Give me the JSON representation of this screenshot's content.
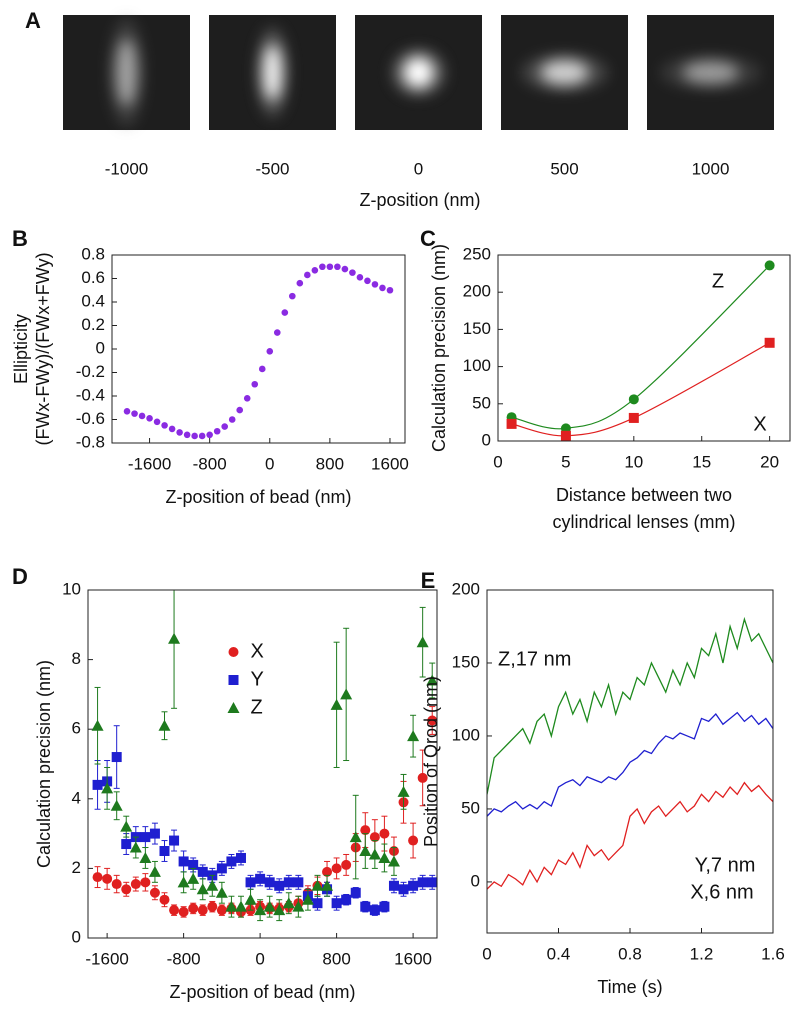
{
  "chart_data": [
    {
      "type": "image-strip",
      "panel": "A",
      "categories": [
        -1000,
        -500,
        0,
        500,
        1000
      ],
      "xlabel": "Z-position (nm)"
    },
    {
      "type": "scatter",
      "panel": "B",
      "color": "#8a2be2",
      "xlabel": "Z-position of bead (nm)",
      "ylabel": [
        "Ellipticity",
        "(FWx-FWy)/(FWx+FWy)"
      ],
      "x": [
        -1900,
        -1800,
        -1700,
        -1600,
        -1500,
        -1400,
        -1300,
        -1200,
        -1100,
        -1000,
        -900,
        -800,
        -700,
        -600,
        -500,
        -400,
        -300,
        -200,
        -100,
        0,
        100,
        200,
        300,
        400,
        500,
        600,
        700,
        800,
        900,
        1000,
        1100,
        1200,
        1300,
        1400,
        1500,
        1600
      ],
      "values": [
        -0.53,
        -0.55,
        -0.57,
        -0.59,
        -0.62,
        -0.65,
        -0.68,
        -0.71,
        -0.73,
        -0.74,
        -0.74,
        -0.73,
        -0.7,
        -0.66,
        -0.6,
        -0.52,
        -0.42,
        -0.3,
        -0.17,
        -0.02,
        0.14,
        0.31,
        0.45,
        0.56,
        0.63,
        0.67,
        0.7,
        0.7,
        0.7,
        0.68,
        0.65,
        0.61,
        0.58,
        0.55,
        0.52,
        0.5
      ],
      "xlim": [
        -2100,
        1800
      ],
      "xticks": [
        -1600,
        -800,
        0,
        800,
        1600
      ],
      "ylim": [
        -0.8,
        0.8
      ],
      "yticks": [
        0.8,
        0.6,
        0.4,
        0.2,
        0,
        -0.2,
        -0.4,
        -0.6,
        -0.8
      ]
    },
    {
      "type": "line",
      "panel": "C",
      "smooth": true,
      "xlabel": [
        "Distance between two",
        "cylindrical lenses (mm)"
      ],
      "ylabel": "Calculation precision (nm)",
      "x": [
        1,
        5,
        10,
        20
      ],
      "series": [
        {
          "name": "Z",
          "color": "#1e8a1e",
          "marker": "circle",
          "values": [
            32,
            17,
            56,
            236
          ]
        },
        {
          "name": "X",
          "color": "#e02020",
          "marker": "square",
          "values": [
            23,
            7,
            31,
            132
          ]
        }
      ],
      "xlim": [
        0,
        21.5
      ],
      "xticks": [
        0,
        5,
        10,
        15,
        20
      ],
      "ylim": [
        0,
        250
      ],
      "yticks": [
        0,
        50,
        100,
        150,
        200,
        250
      ]
    },
    {
      "type": "scatter",
      "panel": "D",
      "legend": "upper center",
      "xlabel": "Z-position of bead (nm)",
      "ylabel": "Calculation precision (nm)",
      "x": [
        -1700,
        -1600,
        -1500,
        -1400,
        -1300,
        -1200,
        -1100,
        -1000,
        -900,
        -800,
        -700,
        -600,
        -500,
        -400,
        -300,
        -200,
        -100,
        0,
        100,
        200,
        300,
        400,
        500,
        600,
        700,
        800,
        900,
        1000,
        1100,
        1200,
        1300,
        1400,
        1500,
        1600,
        1700,
        1800
      ],
      "series": [
        {
          "name": "X",
          "color": "#e02020",
          "marker": "circle",
          "values": [
            1.75,
            1.7,
            1.55,
            1.4,
            1.55,
            1.6,
            1.3,
            1.1,
            0.8,
            0.75,
            0.85,
            0.8,
            0.9,
            0.8,
            0.85,
            0.75,
            0.8,
            0.9,
            0.85,
            0.85,
            0.9,
            1.0,
            1.3,
            1.5,
            1.9,
            2.0,
            2.1,
            2.6,
            3.1,
            2.9,
            3.0,
            2.5,
            3.9,
            2.8,
            4.6,
            6.25
          ],
          "errors": [
            0.3,
            0.3,
            0.25,
            0.2,
            0.2,
            0.25,
            0.2,
            0.2,
            0.15,
            0.15,
            0.15,
            0.15,
            0.15,
            0.15,
            0.15,
            0.15,
            0.15,
            0.15,
            0.15,
            0.15,
            0.15,
            0.2,
            0.2,
            0.25,
            0.3,
            0.3,
            0.3,
            0.4,
            0.5,
            0.5,
            0.5,
            0.4,
            0.6,
            0.5,
            0.8,
            0.4
          ]
        },
        {
          "name": "Y",
          "color": "#1f1fd0",
          "marker": "square",
          "values": [
            4.4,
            4.5,
            5.2,
            2.7,
            2.9,
            2.9,
            3.0,
            2.5,
            2.8,
            2.2,
            2.1,
            1.9,
            1.8,
            2.0,
            2.2,
            2.3,
            1.6,
            1.7,
            1.6,
            1.5,
            1.6,
            1.6,
            1.2,
            1.0,
            1.4,
            1.0,
            1.1,
            1.3,
            0.9,
            0.8,
            0.9,
            1.5,
            1.4,
            1.5,
            1.6,
            1.6
          ],
          "errors": [
            0.7,
            0.6,
            0.9,
            0.3,
            0.3,
            0.3,
            0.3,
            0.3,
            0.3,
            0.3,
            0.2,
            0.2,
            0.2,
            0.2,
            0.2,
            0.2,
            0.2,
            0.2,
            0.2,
            0.2,
            0.2,
            0.2,
            0.2,
            0.2,
            0.2,
            0.2,
            0.15,
            0.15,
            0.15,
            0.15,
            0.15,
            0.2,
            0.2,
            0.2,
            0.2,
            0.2
          ]
        },
        {
          "name": "Z",
          "color": "#1e7a1e",
          "marker": "triangle",
          "values": [
            6.1,
            4.3,
            3.8,
            3.2,
            2.6,
            2.3,
            1.9,
            6.1,
            8.6,
            1.6,
            1.7,
            1.4,
            1.5,
            1.3,
            0.9,
            0.9,
            1.1,
            0.8,
            0.9,
            0.8,
            1.0,
            0.9,
            1.1,
            1.5,
            1.5,
            6.7,
            7.0,
            2.9,
            2.5,
            2.4,
            2.3,
            2.2,
            4.2,
            5.8,
            8.5,
            7.4
          ],
          "errors": [
            1.1,
            0.6,
            0.4,
            0.3,
            0.3,
            0.3,
            0.3,
            0.4,
            2.0,
            0.3,
            0.3,
            0.3,
            0.3,
            0.3,
            0.3,
            0.3,
            0.3,
            0.3,
            0.3,
            0.3,
            0.3,
            0.3,
            0.3,
            0.3,
            0.3,
            1.8,
            1.9,
            1.2,
            0.5,
            0.4,
            0.4,
            0.4,
            0.5,
            0.6,
            1.0,
            0.5
          ]
        }
      ],
      "xlim": [
        -1800,
        1850
      ],
      "xticks": [
        -1600,
        -800,
        0,
        800,
        1600
      ],
      "ylim": [
        0,
        10
      ],
      "yticks": [
        0,
        2,
        4,
        6,
        8,
        10
      ]
    },
    {
      "type": "line",
      "panel": "E",
      "xlabel": "Time (s)",
      "ylabel": "Position of Qrod (nm)",
      "x": [
        0,
        0.04,
        0.08,
        0.12,
        0.16,
        0.2,
        0.24,
        0.28,
        0.32,
        0.36,
        0.4,
        0.44,
        0.48,
        0.52,
        0.56,
        0.6,
        0.64,
        0.68,
        0.72,
        0.76,
        0.8,
        0.84,
        0.88,
        0.92,
        0.96,
        1.0,
        1.04,
        1.08,
        1.12,
        1.16,
        1.2,
        1.24,
        1.28,
        1.32,
        1.36,
        1.4,
        1.44,
        1.48,
        1.52,
        1.56,
        1.6
      ],
      "series": [
        {
          "name": "Z,17 nm",
          "color": "#1e8a1e",
          "values": [
            60,
            85,
            90,
            95,
            100,
            105,
            95,
            110,
            115,
            100,
            120,
            130,
            115,
            125,
            110,
            130,
            120,
            135,
            115,
            130,
            125,
            140,
            135,
            150,
            140,
            130,
            145,
            135,
            150,
            140,
            160,
            155,
            170,
            150,
            175,
            160,
            180,
            165,
            170,
            160,
            150
          ]
        },
        {
          "name": "Y,7 nm",
          "color": "#1f1fd0",
          "values": [
            45,
            50,
            48,
            52,
            55,
            50,
            53,
            50,
            55,
            52,
            65,
            68,
            70,
            66,
            72,
            70,
            68,
            72,
            70,
            75,
            82,
            85,
            90,
            88,
            95,
            100,
            98,
            102,
            100,
            98,
            112,
            110,
            115,
            108,
            112,
            116,
            110,
            114,
            108,
            112,
            105
          ]
        },
        {
          "name": "X,6 nm",
          "color": "#e02020",
          "values": [
            -5,
            0,
            -3,
            5,
            2,
            -2,
            8,
            0,
            10,
            5,
            15,
            12,
            20,
            10,
            25,
            18,
            22,
            15,
            20,
            25,
            45,
            50,
            40,
            48,
            52,
            45,
            50,
            55,
            48,
            52,
            60,
            55,
            62,
            58,
            65,
            60,
            68,
            62,
            66,
            60,
            55
          ]
        }
      ],
      "xlim": [
        0,
        1.6
      ],
      "xticks": [
        0,
        0.4,
        0.8,
        1.2,
        1.6
      ],
      "ylim": [
        -35,
        200
      ],
      "yticks": [
        0,
        50,
        100,
        150,
        200
      ]
    }
  ]
}
